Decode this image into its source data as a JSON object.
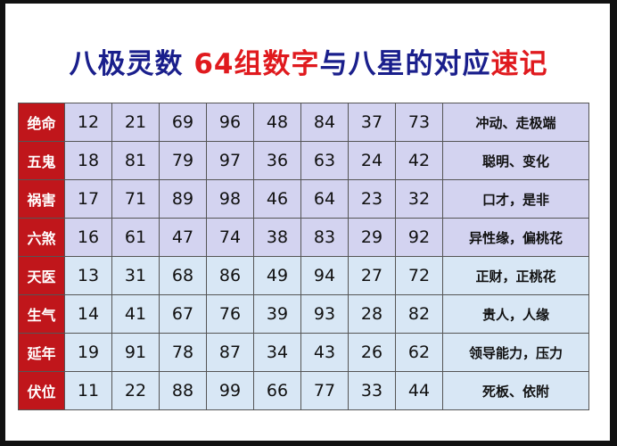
{
  "title": {
    "part1": "八极灵数 ",
    "part2": "64组数字",
    "part3": "与八星的对应",
    "part4": "速记"
  },
  "colors": {
    "title_blue": "#1a1f8c",
    "title_red": "#e01a1e",
    "label_bg": "#c0161b",
    "rows_top_bg": "#d3d3f0",
    "rows_bottom_bg": "#d8e7f5"
  },
  "rows": [
    {
      "label": "绝命",
      "nums": [
        "12",
        "21",
        "69",
        "96",
        "48",
        "84",
        "37",
        "73"
      ],
      "desc": "冲动、走极端"
    },
    {
      "label": "五鬼",
      "nums": [
        "18",
        "81",
        "79",
        "97",
        "36",
        "63",
        "24",
        "42"
      ],
      "desc": "聪明、变化"
    },
    {
      "label": "祸害",
      "nums": [
        "17",
        "71",
        "89",
        "98",
        "46",
        "64",
        "23",
        "32"
      ],
      "desc": "口才，是非"
    },
    {
      "label": "六煞",
      "nums": [
        "16",
        "61",
        "47",
        "74",
        "38",
        "83",
        "29",
        "92"
      ],
      "desc": "异性缘，偏桃花"
    },
    {
      "label": "天医",
      "nums": [
        "13",
        "31",
        "68",
        "86",
        "49",
        "94",
        "27",
        "72"
      ],
      "desc": "正财，正桃花"
    },
    {
      "label": "生气",
      "nums": [
        "14",
        "41",
        "67",
        "76",
        "39",
        "93",
        "28",
        "82"
      ],
      "desc": "贵人，人缘"
    },
    {
      "label": "延年",
      "nums": [
        "19",
        "91",
        "78",
        "87",
        "34",
        "43",
        "26",
        "62"
      ],
      "desc": "领导能力，压力"
    },
    {
      "label": "伏位",
      "nums": [
        "11",
        "22",
        "88",
        "99",
        "66",
        "77",
        "33",
        "44"
      ],
      "desc": "死板、依附"
    }
  ]
}
